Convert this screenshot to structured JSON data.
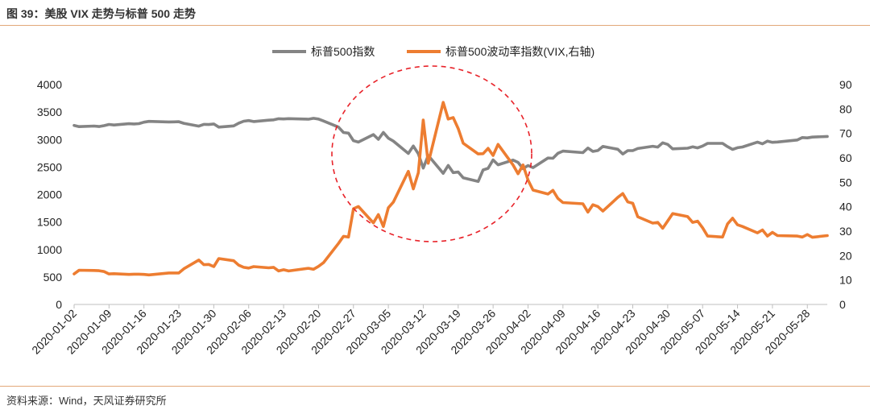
{
  "figure": {
    "title": "图 39：美股 VIX 走势与标普 500 走势",
    "source": "资料来源：Wind，天风证券研究所"
  },
  "colors": {
    "sp500": "#848484",
    "vix": "#ed7d31",
    "circle": "#e8232a",
    "axis": "#bfbfbf"
  },
  "chart_data": {
    "type": "line",
    "legend_position": "top",
    "grid": false,
    "x_tick_labels": [
      "2020-01-02",
      "2020-01-09",
      "2020-01-16",
      "2020-01-23",
      "2020-01-30",
      "2020-02-06",
      "2020-02-13",
      "2020-02-20",
      "2020-02-27",
      "2020-03-05",
      "2020-03-12",
      "2020-03-19",
      "2020-03-26",
      "2020-04-02",
      "2020-04-09",
      "2020-04-16",
      "2020-04-23",
      "2020-04-30",
      "2020-05-07",
      "2020-05-14",
      "2020-05-21",
      "2020-05-28"
    ],
    "y_left": {
      "range": [
        0,
        4000
      ],
      "ticks": [
        0,
        500,
        1000,
        1500,
        2000,
        2500,
        3000,
        3500,
        4000
      ]
    },
    "y_right": {
      "range": [
        0,
        90
      ],
      "ticks": [
        0,
        10,
        20,
        30,
        40,
        50,
        60,
        70,
        80,
        90
      ]
    },
    "annotations": [
      {
        "type": "dashed-circle",
        "around": "2020-03-05 to 2020-04-02"
      }
    ],
    "series": [
      {
        "name": "标普500指数",
        "axis": "left",
        "points": [
          [
            "2020-01-02",
            3257
          ],
          [
            "2020-01-03",
            3235
          ],
          [
            "2020-01-06",
            3246
          ],
          [
            "2020-01-07",
            3237
          ],
          [
            "2020-01-08",
            3253
          ],
          [
            "2020-01-09",
            3275
          ],
          [
            "2020-01-10",
            3265
          ],
          [
            "2020-01-13",
            3288
          ],
          [
            "2020-01-14",
            3283
          ],
          [
            "2020-01-15",
            3289
          ],
          [
            "2020-01-16",
            3316
          ],
          [
            "2020-01-17",
            3330
          ],
          [
            "2020-01-21",
            3320
          ],
          [
            "2020-01-22",
            3321
          ],
          [
            "2020-01-23",
            3325
          ],
          [
            "2020-01-24",
            3295
          ],
          [
            "2020-01-27",
            3244
          ],
          [
            "2020-01-28",
            3276
          ],
          [
            "2020-01-29",
            3273
          ],
          [
            "2020-01-30",
            3284
          ],
          [
            "2020-01-31",
            3226
          ],
          [
            "2020-02-03",
            3249
          ],
          [
            "2020-02-04",
            3298
          ],
          [
            "2020-02-05",
            3334
          ],
          [
            "2020-02-06",
            3345
          ],
          [
            "2020-02-07",
            3328
          ],
          [
            "2020-02-10",
            3352
          ],
          [
            "2020-02-11",
            3358
          ],
          [
            "2020-02-12",
            3379
          ],
          [
            "2020-02-13",
            3374
          ],
          [
            "2020-02-14",
            3380
          ],
          [
            "2020-02-18",
            3370
          ],
          [
            "2020-02-19",
            3386
          ],
          [
            "2020-02-20",
            3373
          ],
          [
            "2020-02-21",
            3338
          ],
          [
            "2020-02-24",
            3226
          ],
          [
            "2020-02-25",
            3128
          ],
          [
            "2020-02-26",
            3116
          ],
          [
            "2020-02-27",
            2979
          ],
          [
            "2020-02-28",
            2954
          ],
          [
            "2020-03-02",
            3090
          ],
          [
            "2020-03-03",
            3003
          ],
          [
            "2020-03-04",
            3130
          ],
          [
            "2020-03-05",
            3024
          ],
          [
            "2020-03-06",
            2972
          ],
          [
            "2020-03-09",
            2747
          ],
          [
            "2020-03-10",
            2882
          ],
          [
            "2020-03-11",
            2741
          ],
          [
            "2020-03-12",
            2481
          ],
          [
            "2020-03-13",
            2711
          ],
          [
            "2020-03-16",
            2386
          ],
          [
            "2020-03-17",
            2529
          ],
          [
            "2020-03-18",
            2398
          ],
          [
            "2020-03-19",
            2409
          ],
          [
            "2020-03-20",
            2305
          ],
          [
            "2020-03-23",
            2237
          ],
          [
            "2020-03-24",
            2447
          ],
          [
            "2020-03-25",
            2476
          ],
          [
            "2020-03-26",
            2630
          ],
          [
            "2020-03-27",
            2541
          ],
          [
            "2020-03-30",
            2627
          ],
          [
            "2020-03-31",
            2585
          ],
          [
            "2020-04-01",
            2471
          ],
          [
            "2020-04-02",
            2527
          ],
          [
            "2020-04-03",
            2489
          ],
          [
            "2020-04-06",
            2664
          ],
          [
            "2020-04-07",
            2660
          ],
          [
            "2020-04-08",
            2750
          ],
          [
            "2020-04-09",
            2790
          ],
          [
            "2020-04-13",
            2762
          ],
          [
            "2020-04-14",
            2846
          ],
          [
            "2020-04-15",
            2784
          ],
          [
            "2020-04-16",
            2800
          ],
          [
            "2020-04-17",
            2875
          ],
          [
            "2020-04-20",
            2824
          ],
          [
            "2020-04-21",
            2737
          ],
          [
            "2020-04-22",
            2799
          ],
          [
            "2020-04-23",
            2798
          ],
          [
            "2020-04-24",
            2837
          ],
          [
            "2020-04-27",
            2878
          ],
          [
            "2020-04-28",
            2863
          ],
          [
            "2020-04-29",
            2940
          ],
          [
            "2020-04-30",
            2912
          ],
          [
            "2020-05-01",
            2831
          ],
          [
            "2020-05-04",
            2843
          ],
          [
            "2020-05-05",
            2868
          ],
          [
            "2020-05-06",
            2848
          ],
          [
            "2020-05-07",
            2882
          ],
          [
            "2020-05-08",
            2930
          ],
          [
            "2020-05-11",
            2930
          ],
          [
            "2020-05-12",
            2870
          ],
          [
            "2020-05-13",
            2820
          ],
          [
            "2020-05-14",
            2852
          ],
          [
            "2020-05-15",
            2864
          ],
          [
            "2020-05-18",
            2954
          ],
          [
            "2020-05-19",
            2922
          ],
          [
            "2020-05-20",
            2972
          ],
          [
            "2020-05-21",
            2949
          ],
          [
            "2020-05-22",
            2955
          ],
          [
            "2020-05-26",
            2992
          ],
          [
            "2020-05-27",
            3036
          ],
          [
            "2020-05-28",
            3030
          ],
          [
            "2020-05-29",
            3044
          ],
          [
            "2020-06-01",
            3056
          ]
        ]
      },
      {
        "name": "标普500波动率指数(VIX,右轴)",
        "axis": "right",
        "points": [
          [
            "2020-01-02",
            12.5
          ],
          [
            "2020-01-03",
            14.0
          ],
          [
            "2020-01-06",
            13.9
          ],
          [
            "2020-01-07",
            13.8
          ],
          [
            "2020-01-08",
            13.5
          ],
          [
            "2020-01-09",
            12.5
          ],
          [
            "2020-01-10",
            12.6
          ],
          [
            "2020-01-13",
            12.3
          ],
          [
            "2020-01-14",
            12.4
          ],
          [
            "2020-01-15",
            12.4
          ],
          [
            "2020-01-16",
            12.3
          ],
          [
            "2020-01-17",
            12.1
          ],
          [
            "2020-01-21",
            12.9
          ],
          [
            "2020-01-22",
            12.9
          ],
          [
            "2020-01-23",
            12.9
          ],
          [
            "2020-01-24",
            14.6
          ],
          [
            "2020-01-27",
            18.2
          ],
          [
            "2020-01-28",
            16.3
          ],
          [
            "2020-01-29",
            16.4
          ],
          [
            "2020-01-30",
            15.5
          ],
          [
            "2020-01-31",
            18.8
          ],
          [
            "2020-02-03",
            17.9
          ],
          [
            "2020-02-04",
            16.1
          ],
          [
            "2020-02-05",
            15.2
          ],
          [
            "2020-02-06",
            14.9
          ],
          [
            "2020-02-07",
            15.5
          ],
          [
            "2020-02-10",
            15.0
          ],
          [
            "2020-02-11",
            15.2
          ],
          [
            "2020-02-12",
            13.7
          ],
          [
            "2020-02-13",
            14.2
          ],
          [
            "2020-02-14",
            13.7
          ],
          [
            "2020-02-18",
            14.8
          ],
          [
            "2020-02-19",
            14.4
          ],
          [
            "2020-02-20",
            15.6
          ],
          [
            "2020-02-21",
            17.1
          ],
          [
            "2020-02-24",
            25.0
          ],
          [
            "2020-02-25",
            27.9
          ],
          [
            "2020-02-26",
            27.6
          ],
          [
            "2020-02-27",
            39.2
          ],
          [
            "2020-02-28",
            40.1
          ],
          [
            "2020-03-02",
            33.4
          ],
          [
            "2020-03-03",
            36.8
          ],
          [
            "2020-03-04",
            31.9
          ],
          [
            "2020-03-05",
            39.6
          ],
          [
            "2020-03-06",
            41.9
          ],
          [
            "2020-03-09",
            54.5
          ],
          [
            "2020-03-10",
            47.3
          ],
          [
            "2020-03-11",
            53.9
          ],
          [
            "2020-03-12",
            75.5
          ],
          [
            "2020-03-13",
            57.8
          ],
          [
            "2020-03-16",
            82.7
          ],
          [
            "2020-03-17",
            75.9
          ],
          [
            "2020-03-18",
            76.5
          ],
          [
            "2020-03-19",
            72.0
          ],
          [
            "2020-03-20",
            66.0
          ],
          [
            "2020-03-23",
            61.6
          ],
          [
            "2020-03-24",
            61.7
          ],
          [
            "2020-03-25",
            63.9
          ],
          [
            "2020-03-26",
            61.0
          ],
          [
            "2020-03-27",
            65.5
          ],
          [
            "2020-03-30",
            57.1
          ],
          [
            "2020-03-31",
            53.5
          ],
          [
            "2020-04-01",
            57.1
          ],
          [
            "2020-04-02",
            50.9
          ],
          [
            "2020-04-03",
            46.8
          ],
          [
            "2020-04-06",
            45.2
          ],
          [
            "2020-04-07",
            46.7
          ],
          [
            "2020-04-08",
            43.4
          ],
          [
            "2020-04-09",
            41.7
          ],
          [
            "2020-04-13",
            41.2
          ],
          [
            "2020-04-14",
            37.8
          ],
          [
            "2020-04-15",
            40.8
          ],
          [
            "2020-04-16",
            40.1
          ],
          [
            "2020-04-17",
            38.2
          ],
          [
            "2020-04-20",
            43.8
          ],
          [
            "2020-04-21",
            45.4
          ],
          [
            "2020-04-22",
            41.98
          ],
          [
            "2020-04-23",
            41.4
          ],
          [
            "2020-04-24",
            35.9
          ],
          [
            "2020-04-27",
            33.3
          ],
          [
            "2020-04-28",
            33.6
          ],
          [
            "2020-04-29",
            31.2
          ],
          [
            "2020-04-30",
            34.2
          ],
          [
            "2020-05-01",
            37.2
          ],
          [
            "2020-05-04",
            35.97
          ],
          [
            "2020-05-05",
            33.6
          ],
          [
            "2020-05-06",
            34.1
          ],
          [
            "2020-05-07",
            31.4
          ],
          [
            "2020-05-08",
            27.98
          ],
          [
            "2020-05-11",
            27.6
          ],
          [
            "2020-05-12",
            33.0
          ],
          [
            "2020-05-13",
            35.3
          ],
          [
            "2020-05-14",
            32.6
          ],
          [
            "2020-05-15",
            31.9
          ],
          [
            "2020-05-18",
            29.3
          ],
          [
            "2020-05-19",
            30.5
          ],
          [
            "2020-05-20",
            27.99
          ],
          [
            "2020-05-21",
            29.5
          ],
          [
            "2020-05-22",
            28.2
          ],
          [
            "2020-05-26",
            28.0
          ],
          [
            "2020-05-27",
            27.6
          ],
          [
            "2020-05-28",
            28.6
          ],
          [
            "2020-05-29",
            27.5
          ],
          [
            "2020-06-01",
            28.2
          ]
        ]
      }
    ]
  }
}
